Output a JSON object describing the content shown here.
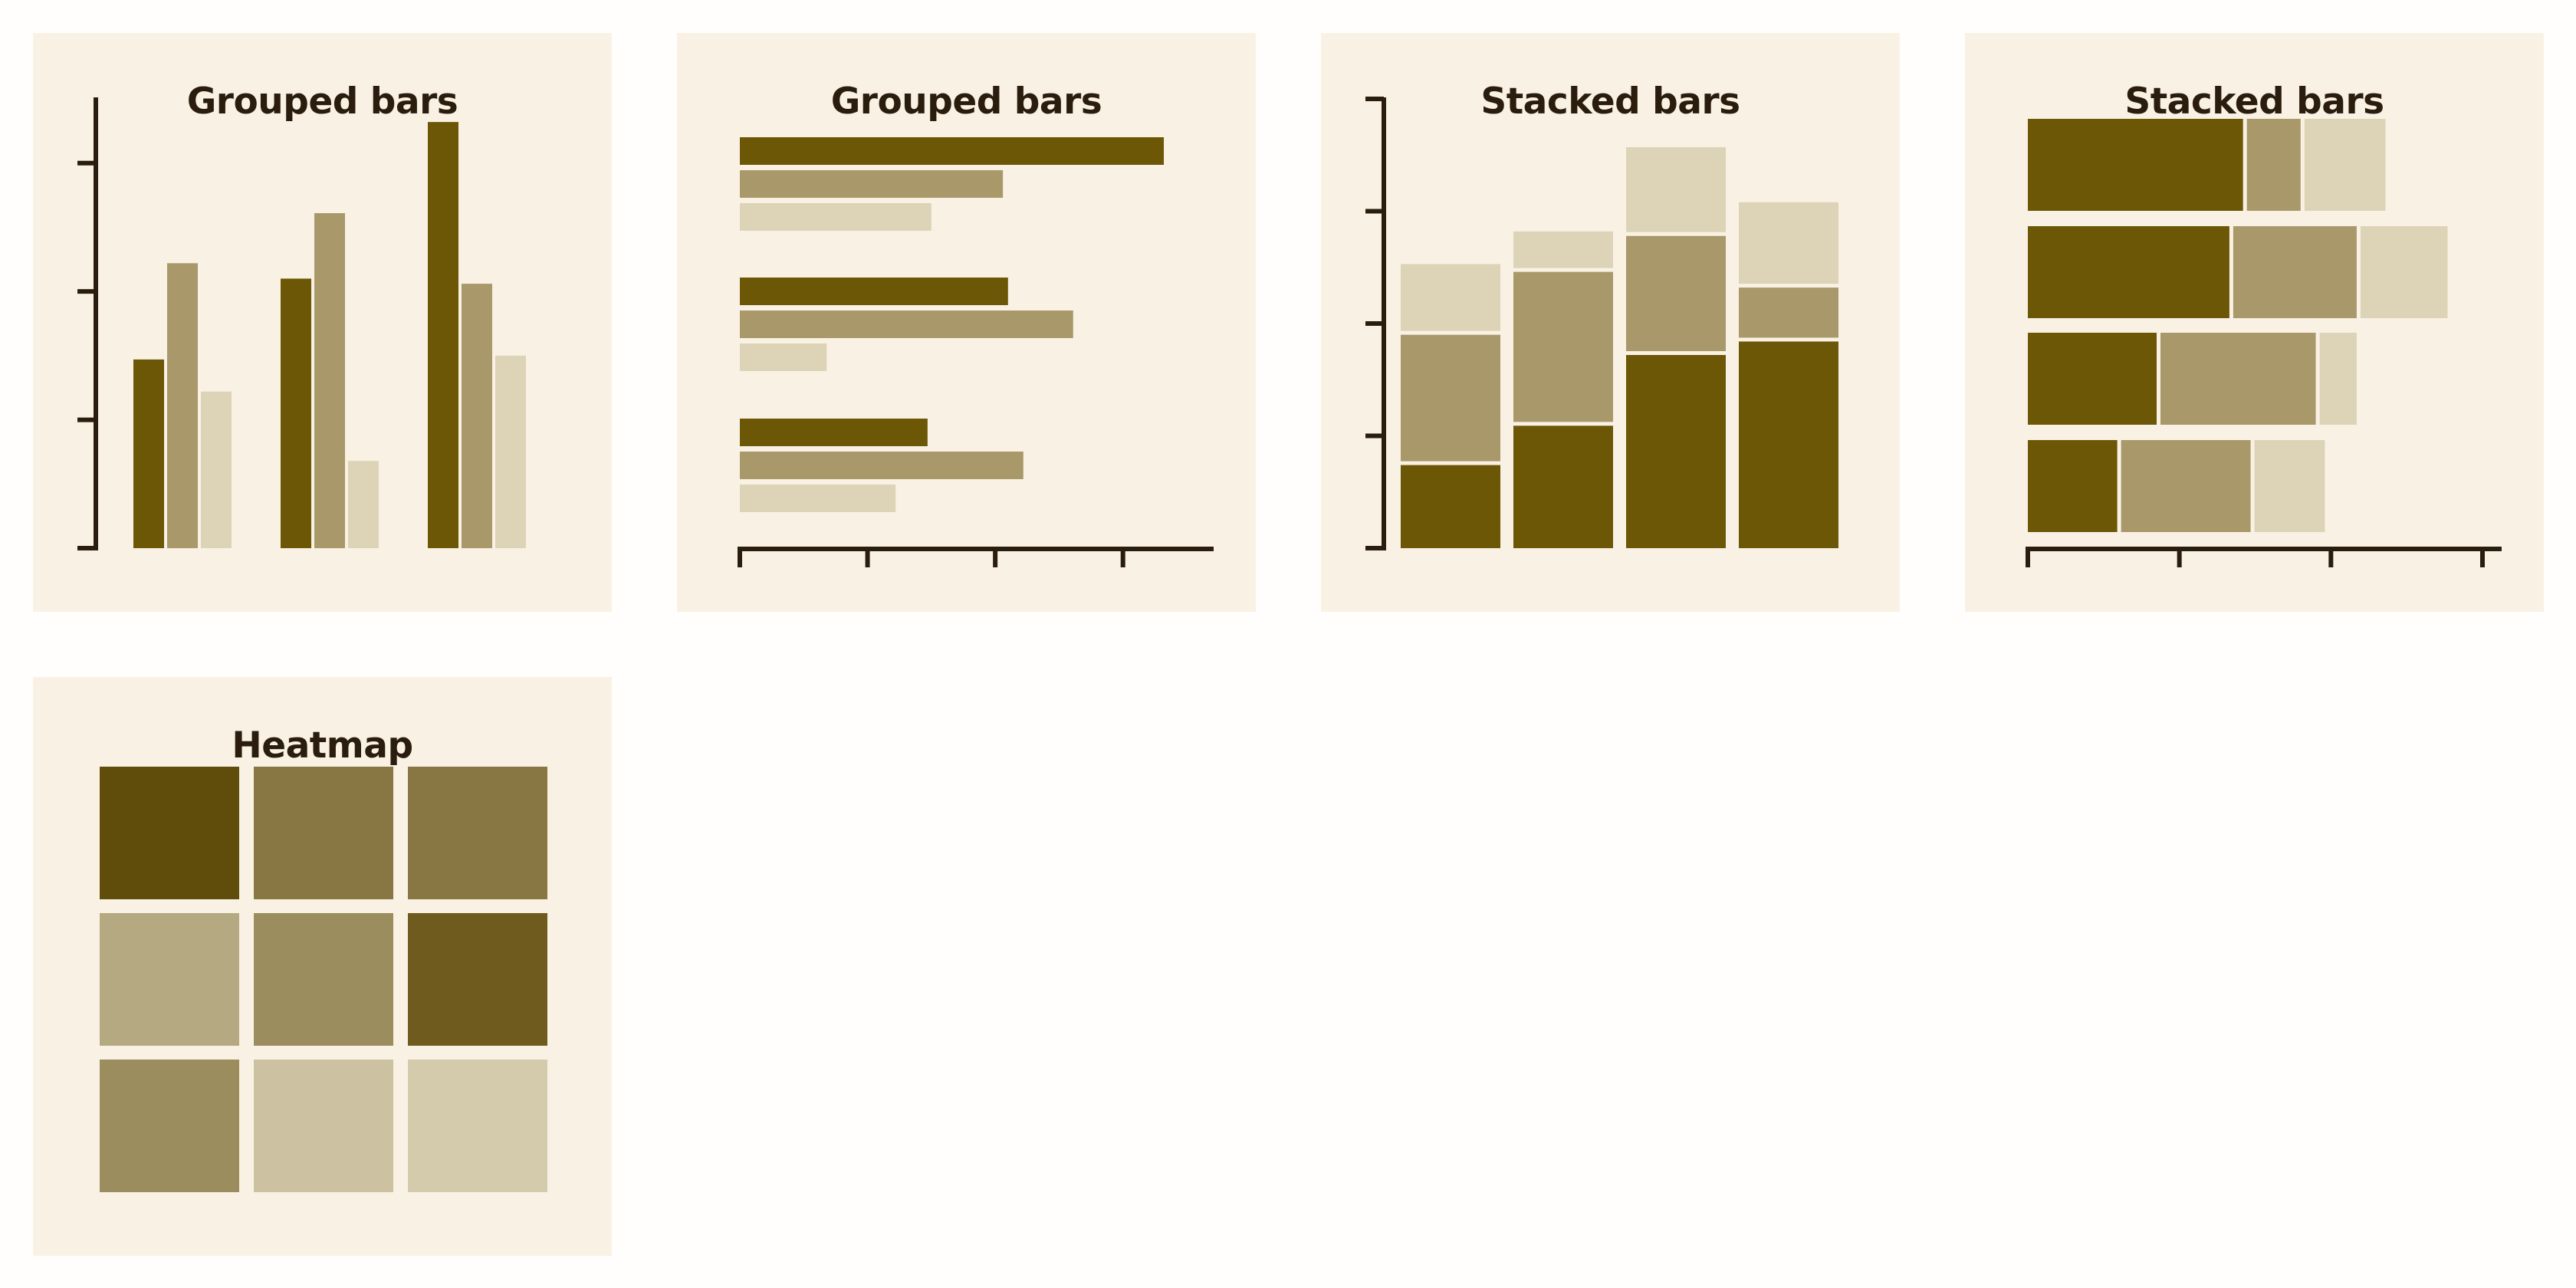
{
  "colors": {
    "series": [
      "#6b5706",
      "#a8986a",
      "#ddd3b7"
    ],
    "axis": "#2b1d0e",
    "panel_bg": "#f9f2e4",
    "heat_dark": "#5a4602",
    "heat_light": "#dcd3b8"
  },
  "panels": [
    {
      "title": "Grouped bars"
    },
    {
      "title": "Grouped bars"
    },
    {
      "title": "Stacked bars"
    },
    {
      "title": "Stacked bars"
    },
    {
      "title": "Heatmap"
    }
  ],
  "chart_data": [
    {
      "type": "bar",
      "orientation": "vertical",
      "title": "Grouped bars",
      "ylim": [
        0,
        3.5
      ],
      "series": [
        {
          "values": [
            1.47,
            2.1,
            3.32
          ]
        },
        {
          "values": [
            2.22,
            2.61,
            2.06
          ]
        },
        {
          "values": [
            1.22,
            0.68,
            1.5
          ]
        }
      ]
    },
    {
      "type": "bar",
      "orientation": "horizontal",
      "title": "Grouped bars",
      "xlim": [
        0,
        3.5
      ],
      "series": [
        {
          "values": [
            3.32,
            2.1,
            1.47
          ]
        },
        {
          "values": [
            2.06,
            2.61,
            2.22
          ]
        },
        {
          "values": [
            1.5,
            0.68,
            1.22
          ]
        }
      ]
    },
    {
      "type": "bar",
      "stacked": true,
      "orientation": "vertical",
      "title": "Stacked bars",
      "ylim": [
        0,
        4.0
      ],
      "series": [
        {
          "values": [
            0.74,
            1.09,
            1.72,
            1.84
          ]
        },
        {
          "values": [
            1.16,
            1.37,
            1.06,
            0.48
          ]
        },
        {
          "values": [
            0.63,
            0.36,
            0.79,
            0.76
          ]
        }
      ]
    },
    {
      "type": "bar",
      "stacked": true,
      "orientation": "horizontal",
      "title": "Stacked bars",
      "xlim": [
        0,
        3.0
      ],
      "series": [
        {
          "values": [
            1.42,
            1.33,
            0.85,
            0.59
          ]
        },
        {
          "values": [
            0.38,
            0.84,
            1.05,
            0.88
          ]
        },
        {
          "values": [
            0.56,
            0.6,
            0.27,
            0.49
          ]
        }
      ]
    },
    {
      "type": "heatmap",
      "title": "Heatmap",
      "values": [
        [
          0.95,
          0.65,
          0.65
        ],
        [
          0.3,
          0.5,
          0.85
        ],
        [
          0.5,
          0.12,
          0.06
        ]
      ]
    }
  ]
}
